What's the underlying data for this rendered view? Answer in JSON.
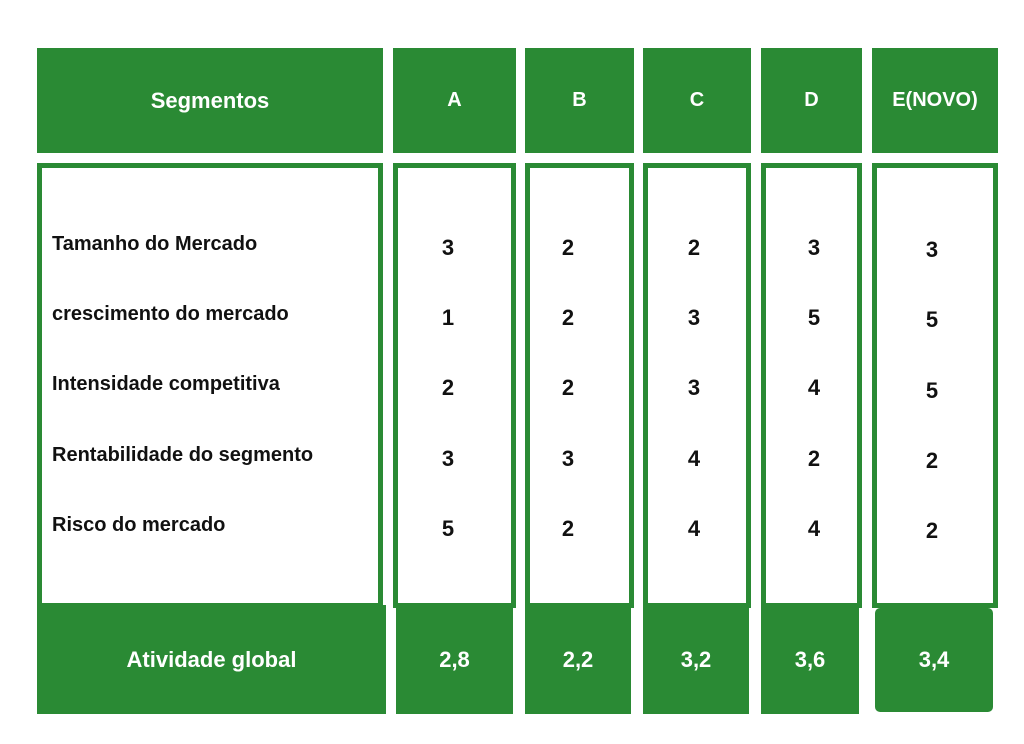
{
  "header": {
    "segments_label": "Segmentos",
    "columns": [
      "A",
      "B",
      "C",
      "D",
      "E(NOVO)"
    ]
  },
  "rows": [
    {
      "label": "Tamanho do Mercado",
      "values": [
        "3",
        "2",
        "2",
        "3",
        "3"
      ]
    },
    {
      "label": "crescimento do mercado",
      "values": [
        "1",
        "2",
        "3",
        "5",
        "5"
      ]
    },
    {
      "label": "Intensidade competitiva",
      "values": [
        "2",
        "2",
        "3",
        "4",
        "5"
      ]
    },
    {
      "label": "Rentabilidade do segmento",
      "values": [
        "3",
        "3",
        "4",
        "2",
        "2"
      ]
    },
    {
      "label": "Risco do mercado",
      "values": [
        "5",
        "2",
        "4",
        "4",
        "2"
      ]
    }
  ],
  "footer": {
    "label": "Atividade global",
    "values": [
      "2,8",
      "2,2",
      "3,2",
      "3,6",
      "3,4"
    ]
  },
  "colors": {
    "accent": "#2a8a34",
    "text": "#111111",
    "background": "#ffffff"
  }
}
